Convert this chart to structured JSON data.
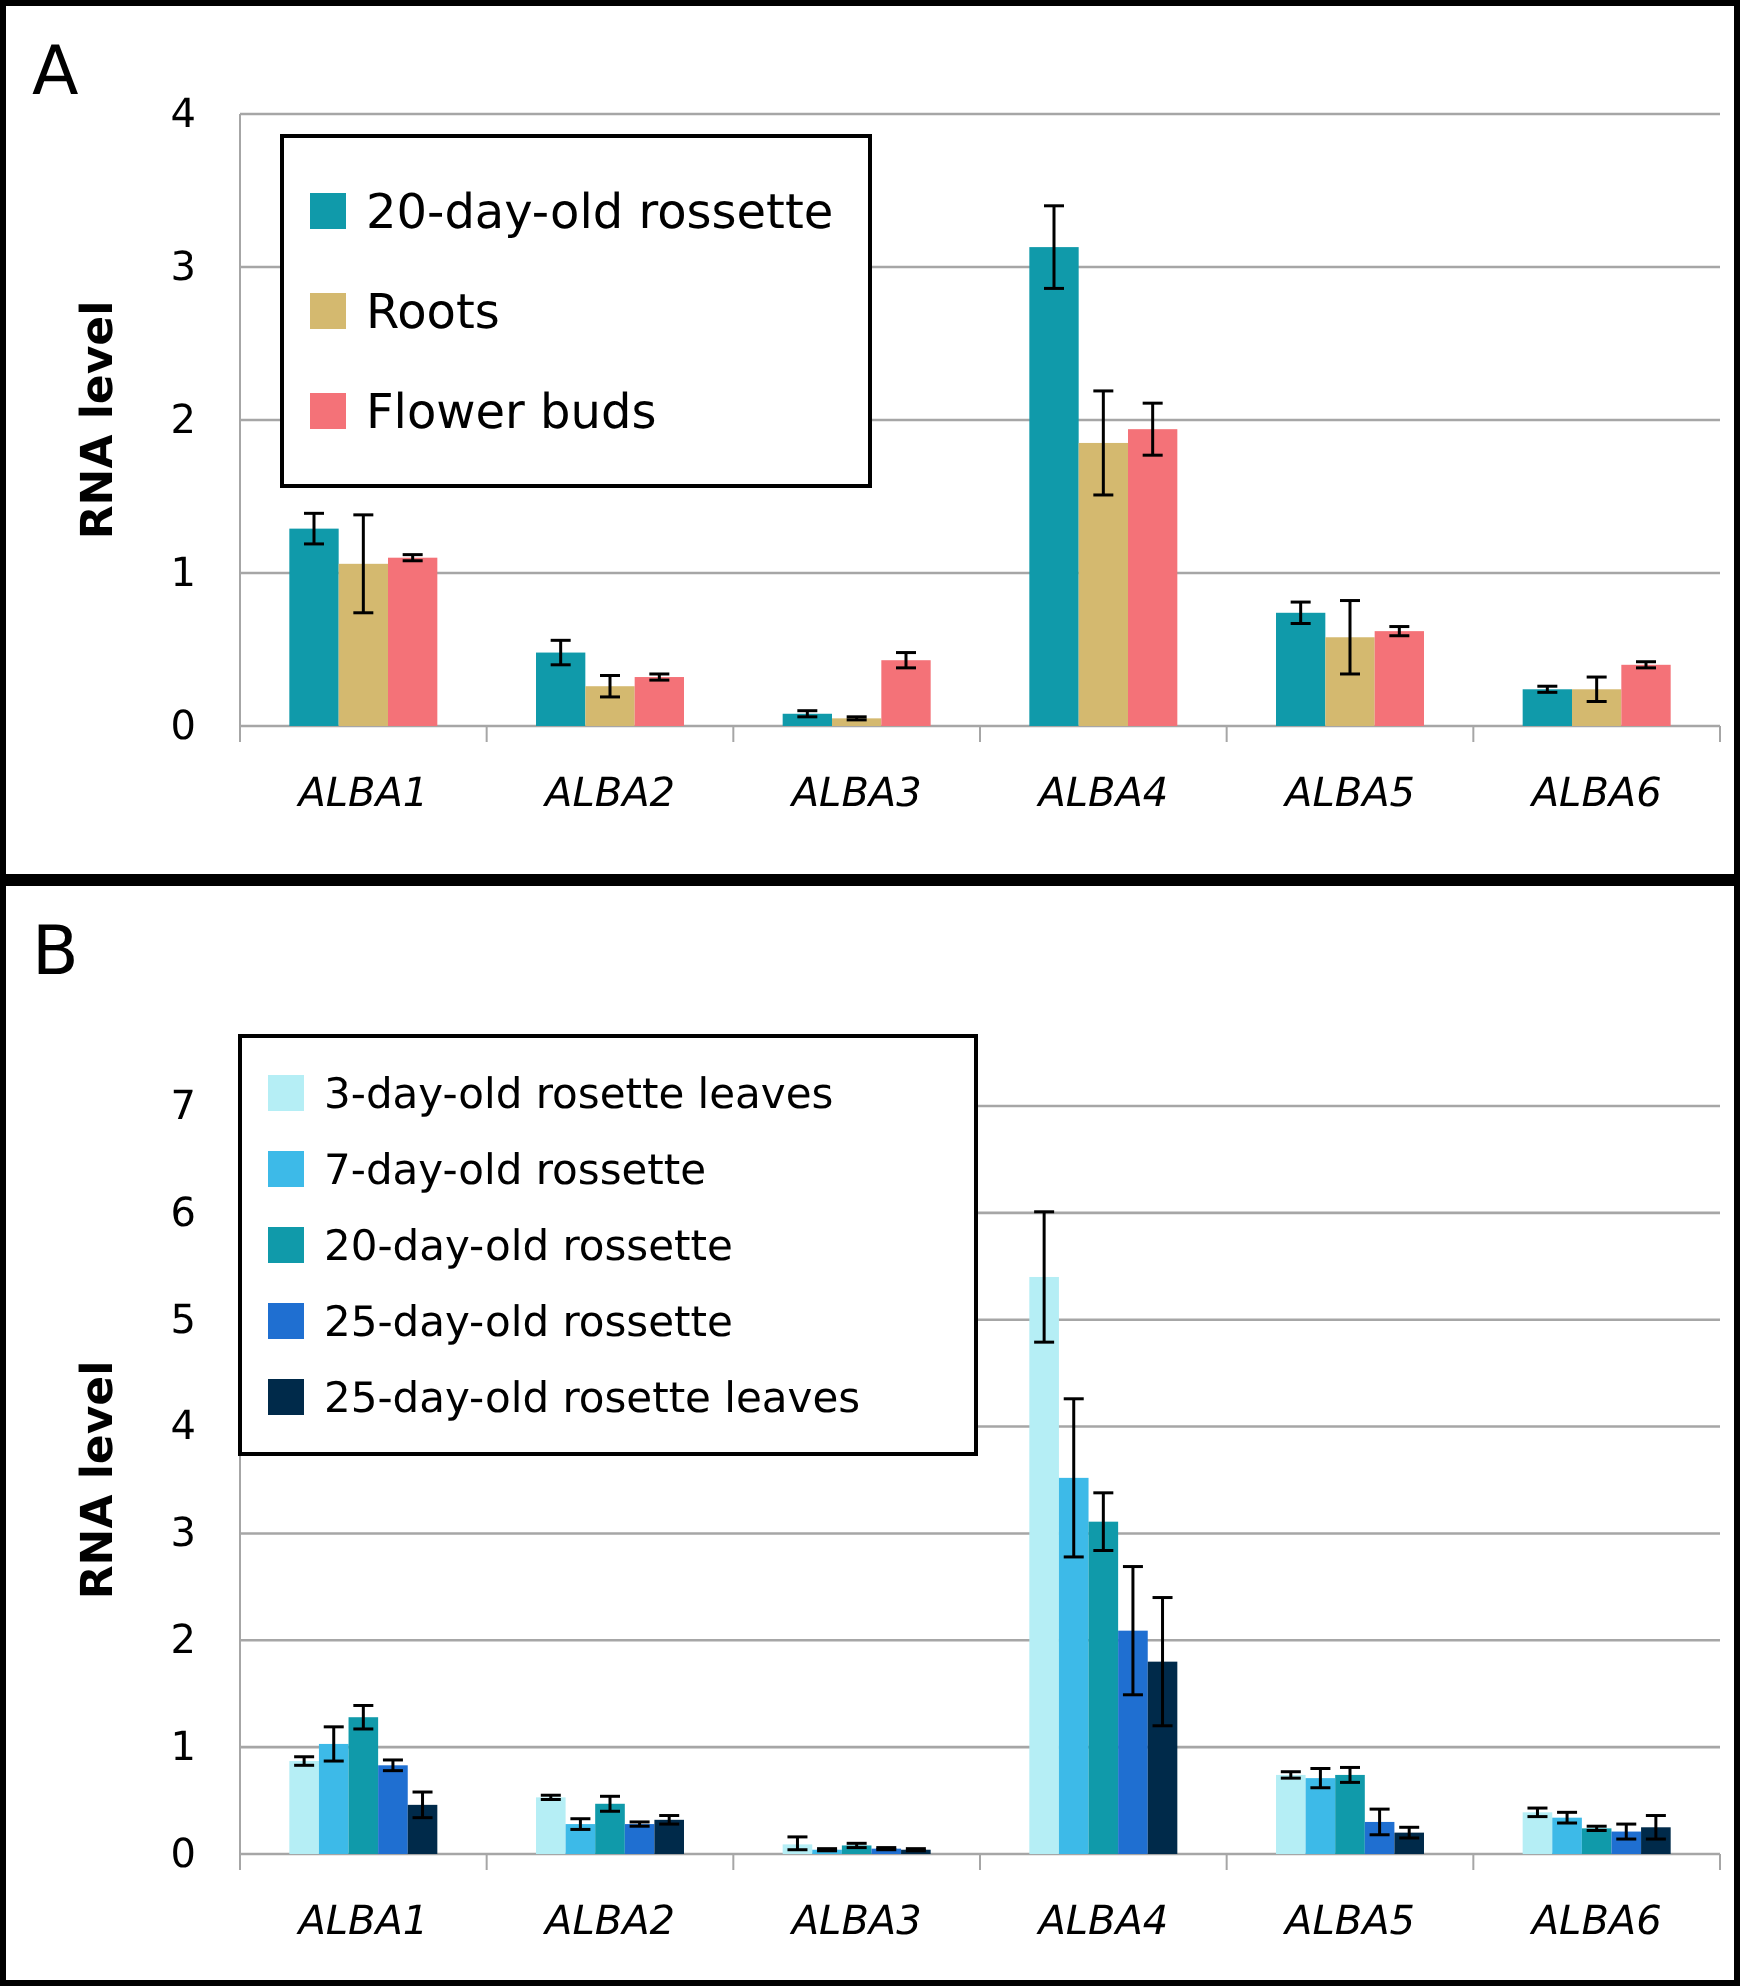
{
  "chart_data": [
    {
      "type": "bar",
      "title": "A",
      "ylabel": "RNA level",
      "categories": [
        "ALBA1",
        "ALBA2",
        "ALBA3",
        "ALBA4",
        "ALBA5",
        "ALBA6"
      ],
      "ylim": [
        0,
        4
      ],
      "yticks": [
        0,
        1,
        2,
        3,
        4
      ],
      "grid": "y",
      "legend": "top left",
      "series": [
        {
          "name": "20-day-old rossette",
          "color": "#109aaa",
          "values": [
            1.29,
            0.48,
            0.08,
            3.13,
            0.74,
            0.24
          ],
          "errors": [
            0.1,
            0.08,
            0.02,
            0.27,
            0.07,
            0.02
          ]
        },
        {
          "name": "Roots",
          "color": "#d4b96f",
          "values": [
            1.06,
            0.26,
            0.05,
            1.85,
            0.58,
            0.24
          ],
          "errors": [
            0.32,
            0.07,
            0.01,
            0.34,
            0.24,
            0.08
          ]
        },
        {
          "name": "Flower buds",
          "color": "#f47278",
          "values": [
            1.1,
            0.32,
            0.43,
            1.94,
            0.62,
            0.4
          ],
          "errors": [
            0.02,
            0.02,
            0.05,
            0.17,
            0.03,
            0.02
          ]
        }
      ]
    },
    {
      "type": "bar",
      "title": "B",
      "ylabel": "RNA level",
      "categories": [
        "ALBA1",
        "ALBA2",
        "ALBA3",
        "ALBA4",
        "ALBA5",
        "ALBA6"
      ],
      "ylim": [
        0,
        7
      ],
      "yticks": [
        0,
        1,
        2,
        3,
        4,
        5,
        6,
        7
      ],
      "grid": "y",
      "legend": "top left",
      "series": [
        {
          "name": "3-day-old rosette leaves",
          "color": "#b5eef5",
          "values": [
            0.87,
            0.53,
            0.09,
            5.4,
            0.74,
            0.39
          ],
          "errors": [
            0.04,
            0.02,
            [
              0.04,
              0.16
            ],
            0.61,
            0.03,
            0.04
          ]
        },
        {
          "name": "7-day-old rossette",
          "color": "#3dbae8",
          "values": [
            1.03,
            0.28,
            0.04,
            3.52,
            0.71,
            0.34
          ],
          "errors": [
            0.16,
            0.05,
            0.01,
            0.74,
            0.09,
            0.05
          ]
        },
        {
          "name": "20-day-old rossette",
          "color": "#109aaa",
          "values": [
            1.28,
            0.47,
            0.08,
            3.11,
            0.74,
            0.24
          ],
          "errors": [
            0.11,
            0.07,
            0.02,
            0.27,
            0.07,
            0.02
          ]
        },
        {
          "name": "25-day-old rossette",
          "color": "#1f6fd1",
          "values": [
            0.83,
            0.28,
            0.05,
            2.09,
            0.3,
            0.21
          ],
          "errors": [
            0.05,
            0.02,
            0.01,
            0.6,
            0.12,
            0.07
          ]
        },
        {
          "name": "25-day-old rosette leaves",
          "color": "#002a4a",
          "values": [
            0.46,
            0.32,
            0.04,
            1.8,
            0.2,
            0.25
          ],
          "errors": [
            0.12,
            0.04,
            0.01,
            0.6,
            0.05,
            0.11
          ]
        }
      ]
    }
  ]
}
